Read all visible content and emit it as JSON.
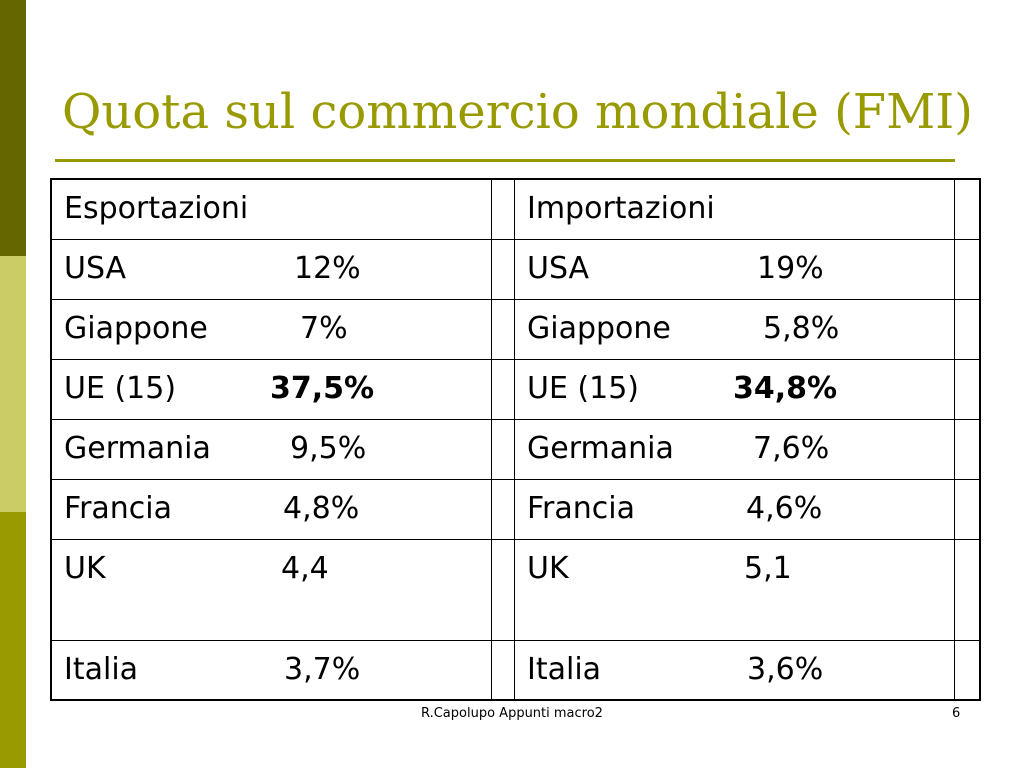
{
  "slide": {
    "title": "Quota sul commercio mondiale (FMI)",
    "footer": "R.Capolupo Appunti macro2",
    "page_number": "6",
    "accent_color": "#999900",
    "sidebar_colors": [
      "#666600",
      "#cccc66",
      "#999900"
    ]
  },
  "table": {
    "headers": {
      "exports": "Esportazioni",
      "imports": "Importazioni"
    },
    "rows": [
      {
        "exp_country": "USA",
        "exp_value": "12%",
        "imp_country": "USA",
        "imp_value": "19%"
      },
      {
        "exp_country": "Giappone",
        "exp_value": "7%",
        "imp_country": "Giappone",
        "imp_value": "5,8%"
      },
      {
        "exp_country": "UE (15)",
        "exp_value": "37,5%",
        "imp_country": "UE (15)",
        "imp_value": "34,8%"
      },
      {
        "exp_country": "Germania",
        "exp_value": "9,5%",
        "imp_country": "Germania",
        "imp_value": "7,6%"
      },
      {
        "exp_country": "Francia",
        "exp_value": "4,8%",
        "imp_country": "Francia",
        "imp_value": "4,6%"
      },
      {
        "exp_country": "UK",
        "exp_value": "4,4",
        "imp_country": "UK",
        "imp_value": "5,1"
      },
      {
        "exp_country": "Italia",
        "exp_value": "3,7%",
        "imp_country": "Italia",
        "imp_value": "3,6%"
      }
    ]
  }
}
